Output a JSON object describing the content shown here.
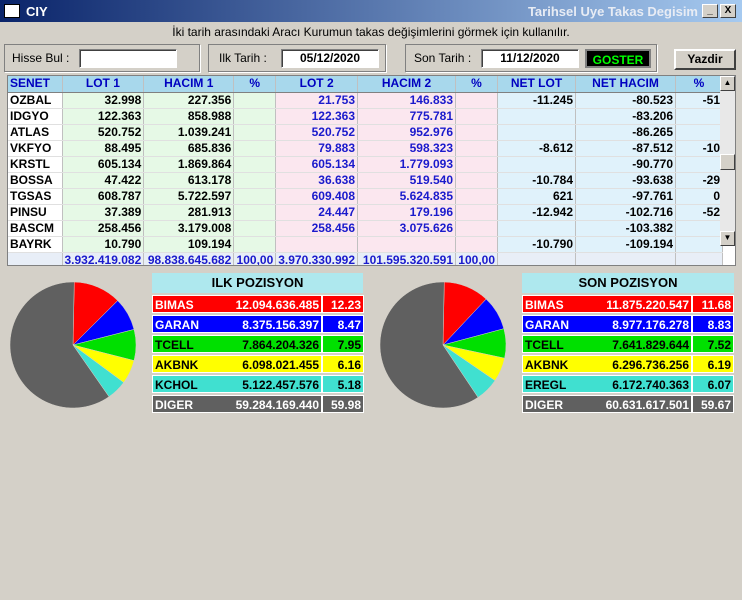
{
  "window": {
    "title": "CIY",
    "right_title": "Tarihsel Uye Takas Degisim",
    "min_btn": "_",
    "max_btn": "□",
    "close_btn": "X"
  },
  "hint": "İki tarih arasındaki  Aracı Kurumun takas değişimlerini görmek için kullanılır.",
  "controls": {
    "hisse_label": "Hisse Bul :",
    "hisse_value": "",
    "ilk_label": "Ilk Tarih :",
    "ilk_value": "05/12/2020",
    "son_label": "Son Tarih :",
    "son_value": "11/12/2020",
    "goster": "GOSTER",
    "yazdir": "Yazdir"
  },
  "grid": {
    "headers": [
      "SENET",
      "LOT 1",
      "HACIM 1",
      "%",
      "LOT 2",
      "HACIM 2",
      "%",
      "NET LOT",
      "NET HACIM",
      "%"
    ],
    "rows": [
      [
        "OZBAL",
        "32.998",
        "227.356",
        "",
        "21.753",
        "146.833",
        "",
        "-11.245",
        "-80.523",
        "-51"
      ],
      [
        "IDGYO",
        "122.363",
        "858.988",
        "",
        "122.363",
        "775.781",
        "",
        "",
        "-83.206",
        ""
      ],
      [
        "ATLAS",
        "520.752",
        "1.039.241",
        "",
        "520.752",
        "952.976",
        "",
        "",
        "-86.265",
        ""
      ],
      [
        "VKFYO",
        "88.495",
        "685.836",
        "",
        "79.883",
        "598.323",
        "",
        "-8.612",
        "-87.512",
        "-10"
      ],
      [
        "KRSTL",
        "605.134",
        "1.869.864",
        "",
        "605.134",
        "1.779.093",
        "",
        "",
        "-90.770",
        ""
      ],
      [
        "BOSSA",
        "47.422",
        "613.178",
        "",
        "36.638",
        "519.540",
        "",
        "-10.784",
        "-93.638",
        "-29"
      ],
      [
        "TGSAS",
        "608.787",
        "5.722.597",
        "",
        "609.408",
        "5.624.835",
        "",
        "621",
        "-97.761",
        "0"
      ],
      [
        "PINSU",
        "37.389",
        "281.913",
        "",
        "24.447",
        "179.196",
        "",
        "-12.942",
        "-102.716",
        "-52"
      ],
      [
        "BASCM",
        "258.456",
        "3.179.008",
        "",
        "258.456",
        "3.075.626",
        "",
        "",
        "-103.382",
        ""
      ],
      [
        "BAYRK",
        "10.790",
        "109.194",
        "",
        "",
        "",
        "",
        "-10.790",
        "-109.194",
        ""
      ]
    ],
    "totals": [
      "",
      "3.932.419.082",
      "98.838.645.682",
      "100,00",
      "3.970.330.992",
      "101.595.320.591",
      "100,00",
      "",
      "",
      ""
    ],
    "scroll_up": "▲",
    "scroll_down": "▼"
  },
  "ilk": {
    "title": "ILK POZISYON",
    "rows": [
      {
        "name": "BIMAS",
        "value": "12.094.636.485",
        "pct": "12.23",
        "color": "#ff0000",
        "text": "#ffffff"
      },
      {
        "name": "GARAN",
        "value": "8.375.156.397",
        "pct": "8.47",
        "color": "#0000ff",
        "text": "#ffffff"
      },
      {
        "name": "TCELL",
        "value": "7.864.204.326",
        "pct": "7.95",
        "color": "#00e000",
        "text": "#000000"
      },
      {
        "name": "AKBNK",
        "value": "6.098.021.455",
        "pct": "6.16",
        "color": "#ffff00",
        "text": "#000000"
      },
      {
        "name": "KCHOL",
        "value": "5.122.457.576",
        "pct": "5.18",
        "color": "#40e0d0",
        "text": "#000000"
      },
      {
        "name": "DIGER",
        "value": "59.284.169.440",
        "pct": "59.98",
        "color": "#606060",
        "text": "#ffffff"
      }
    ]
  },
  "son": {
    "title": "SON POZISYON",
    "rows": [
      {
        "name": "BIMAS",
        "value": "11.875.220.547",
        "pct": "11.68",
        "color": "#ff0000",
        "text": "#ffffff"
      },
      {
        "name": "GARAN",
        "value": "8.977.176.278",
        "pct": "8.83",
        "color": "#0000ff",
        "text": "#ffffff"
      },
      {
        "name": "TCELL",
        "value": "7.641.829.644",
        "pct": "7.52",
        "color": "#00e000",
        "text": "#000000"
      },
      {
        "name": "AKBNK",
        "value": "6.296.736.256",
        "pct": "6.19",
        "color": "#ffff00",
        "text": "#000000"
      },
      {
        "name": "EREGL",
        "value": "6.172.740.363",
        "pct": "6.07",
        "color": "#40e0d0",
        "text": "#000000"
      },
      {
        "name": "DIGER",
        "value": "60.631.617.501",
        "pct": "59.67",
        "color": "#606060",
        "text": "#ffffff"
      }
    ]
  }
}
